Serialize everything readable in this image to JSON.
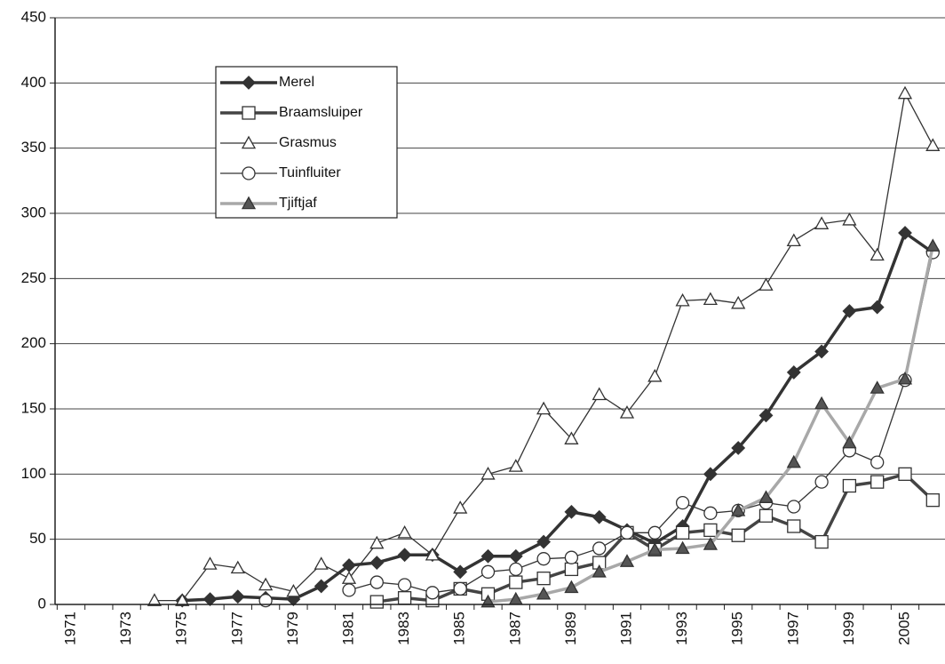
{
  "chart_data": {
    "type": "line",
    "categories": [
      "1971",
      null,
      "1973",
      null,
      "1975",
      null,
      "1977",
      null,
      "1979",
      null,
      "1981",
      null,
      "1983",
      null,
      "1985",
      null,
      "1987",
      null,
      "1989",
      null,
      "1991",
      null,
      "1993",
      null,
      "1995",
      null,
      "1997",
      null,
      "1999",
      null,
      "2005",
      null
    ],
    "series": [
      {
        "name": "Merel",
        "color": "#333333",
        "marker": "diamond",
        "line_width": 3.5,
        "values": [
          null,
          null,
          null,
          null,
          3,
          4,
          6,
          5,
          4,
          14,
          30,
          32,
          38,
          38,
          25,
          37,
          37,
          48,
          71,
          67,
          57,
          47,
          60,
          100,
          120,
          145,
          178,
          194,
          225,
          228,
          285,
          270
        ]
      },
      {
        "name": "Braamsluiper",
        "color": "#444444",
        "marker": "square",
        "line_width": 3.5,
        "values": [
          null,
          null,
          null,
          null,
          null,
          null,
          null,
          null,
          null,
          null,
          null,
          2,
          5,
          3,
          12,
          8,
          17,
          20,
          27,
          32,
          55,
          42,
          55,
          57,
          53,
          68,
          60,
          48,
          91,
          94,
          100,
          80
        ]
      },
      {
        "name": "Grasmus",
        "color": "#333333",
        "marker": "triangle",
        "line_width": 1.3,
        "values": [
          null,
          null,
          null,
          3,
          3,
          31,
          28,
          15,
          10,
          31,
          20,
          47,
          55,
          38,
          74,
          100,
          106,
          150,
          127,
          161,
          147,
          175,
          233,
          234,
          231,
          245,
          279,
          292,
          295,
          268,
          392,
          352
        ]
      },
      {
        "name": "Tuinfluiter",
        "color": "#333333",
        "marker": "circle",
        "line_width": 1.3,
        "values": [
          null,
          null,
          null,
          null,
          null,
          null,
          null,
          3,
          null,
          null,
          11,
          17,
          15,
          9,
          12,
          25,
          27,
          35,
          36,
          43,
          55,
          55,
          78,
          70,
          72,
          78,
          75,
          94,
          118,
          109,
          172,
          270
        ]
      },
      {
        "name": "Tjiftjaf",
        "color": "#a8a8a8",
        "marker": "triangle-filled",
        "line_width": 3.5,
        "values": [
          null,
          null,
          null,
          null,
          null,
          null,
          null,
          null,
          null,
          null,
          null,
          null,
          null,
          null,
          null,
          2,
          4,
          8,
          13,
          25,
          33,
          42,
          43,
          46,
          72,
          82,
          109,
          154,
          124,
          166,
          173,
          275
        ]
      }
    ],
    "ylim": [
      0,
      450
    ],
    "yticks": [
      0,
      50,
      100,
      150,
      200,
      250,
      300,
      350,
      400,
      450
    ],
    "grid": true
  }
}
